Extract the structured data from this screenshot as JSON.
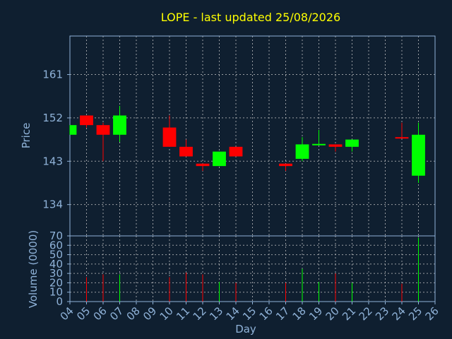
{
  "chart_data": {
    "type": "candlestick",
    "title": "LOPE - last updated 25/08/2026",
    "xlabel": "Day",
    "price_panel": {
      "ylabel": "Price",
      "yticks": [
        134,
        143,
        152,
        161
      ],
      "ylim": [
        127.5,
        169
      ],
      "grid": true
    },
    "volume_panel": {
      "ylabel": "Volume (0000)",
      "yticks": [
        0,
        10,
        20,
        30,
        40,
        50,
        60,
        70
      ],
      "ylim": [
        0,
        70
      ],
      "grid": true
    },
    "x_ticks": [
      "04",
      "05",
      "06",
      "07",
      "08",
      "09",
      "10",
      "11",
      "12",
      "13",
      "14",
      "15",
      "16",
      "17",
      "18",
      "19",
      "20",
      "21",
      "22",
      "23",
      "24",
      "25",
      "26"
    ],
    "colors": {
      "up": "#00ff00",
      "down": "#ff0000",
      "title": "#ffff00",
      "axis": "#8fb2d8",
      "background": "#0f1f30"
    },
    "candles": [
      {
        "day": "04",
        "open": 148.5,
        "close": 150.5,
        "high": 150.5,
        "low": 148.5,
        "volume": 0
      },
      {
        "day": "05",
        "open": 152.5,
        "close": 150.5,
        "high": 152.5,
        "low": 150.0,
        "volume": 26
      },
      {
        "day": "06",
        "open": 150.5,
        "close": 148.5,
        "high": 151.0,
        "low": 143.0,
        "volume": 29
      },
      {
        "day": "07",
        "open": 148.5,
        "close": 152.5,
        "high": 154.5,
        "low": 147.0,
        "volume": 29
      },
      {
        "day": "10",
        "open": 150.0,
        "close": 146.0,
        "high": 152.5,
        "low": 146.0,
        "volume": 26
      },
      {
        "day": "11",
        "open": 146.0,
        "close": 144.0,
        "high": 147.5,
        "low": 144.0,
        "volume": 31
      },
      {
        "day": "12",
        "open": 142.5,
        "close": 142.0,
        "high": 142.5,
        "low": 141.0,
        "volume": 29
      },
      {
        "day": "13",
        "open": 142.0,
        "close": 145.0,
        "high": 145.0,
        "low": 142.0,
        "volume": 21
      },
      {
        "day": "14",
        "open": 146.0,
        "close": 144.0,
        "high": 146.0,
        "low": 144.0,
        "volume": 20
      },
      {
        "day": "17",
        "open": 142.5,
        "close": 142.0,
        "high": 142.5,
        "low": 141.0,
        "volume": 20
      },
      {
        "day": "18",
        "open": 143.5,
        "close": 146.5,
        "high": 148.0,
        "low": 143.0,
        "volume": 35
      },
      {
        "day": "19",
        "open": 146.5,
        "close": 146.6,
        "high": 149.5,
        "low": 146.5,
        "volume": 21
      },
      {
        "day": "20",
        "open": 146.5,
        "close": 146.0,
        "high": 146.5,
        "low": 145.0,
        "volume": 30
      },
      {
        "day": "21",
        "open": 146.0,
        "close": 147.5,
        "high": 147.5,
        "low": 145.0,
        "volume": 20
      },
      {
        "day": "24",
        "open": 148.0,
        "close": 147.8,
        "high": 151.0,
        "low": 147.8,
        "volume": 19
      },
      {
        "day": "25",
        "open": 140.0,
        "close": 148.5,
        "high": 151.0,
        "low": 138.5,
        "volume": 68
      }
    ]
  }
}
